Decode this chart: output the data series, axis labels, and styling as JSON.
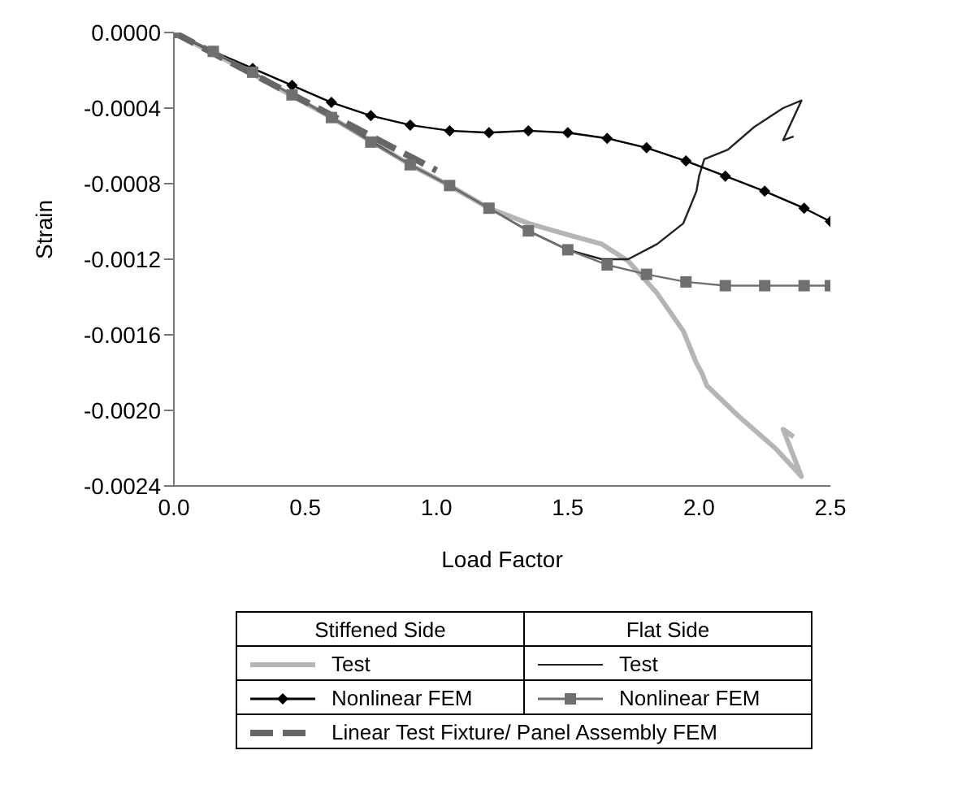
{
  "chart_data": {
    "type": "line",
    "xlabel": "Load Factor",
    "ylabel": "Strain",
    "annotations": [
      "Stiffened Side",
      "Flat Side"
    ],
    "xlim": [
      0,
      2.5
    ],
    "xticks": [
      {
        "value": 0,
        "label": "0.0"
      },
      {
        "value": 0.5,
        "label": "0.5"
      },
      {
        "value": 1,
        "label": "1.0"
      },
      {
        "value": 1.5,
        "label": "1.5"
      },
      {
        "value": 2,
        "label": "2.0"
      },
      {
        "value": 2.5,
        "label": "2.5"
      }
    ],
    "ylim": [
      -0.0024,
      0
    ],
    "yticks": [
      {
        "value": 0,
        "label": "0.0000"
      },
      {
        "value": -0.0004,
        "label": "-0.0004"
      },
      {
        "value": -0.0008,
        "label": "-0.0008"
      },
      {
        "value": -0.0012,
        "label": "-0.0012"
      },
      {
        "value": -0.0016,
        "label": "-0.0016"
      },
      {
        "value": -0.002,
        "label": "-0.0020"
      },
      {
        "value": -0.0024,
        "label": "-0.0024"
      }
    ],
    "grid": false,
    "legend": "bottom",
    "series": [
      {
        "name": "Test",
        "color": "#b5b5b5",
        "marker": "none",
        "line_style": "solid",
        "x": [
          0,
          0.3,
          0.6,
          0.9,
          1.05,
          1.2,
          1.35,
          1.5,
          1.63,
          1.73,
          1.84,
          1.94,
          1.99,
          2.01,
          2.03,
          2.15,
          2.29,
          2.39,
          2.32,
          2.36
        ],
        "values": [
          0,
          -0.00022,
          -0.00045,
          -0.0007,
          -0.00081,
          -0.00093,
          -0.00101,
          -0.00107,
          -0.00112,
          -0.00121,
          -0.00138,
          -0.00158,
          -0.00175,
          -0.0018,
          -0.00187,
          -0.00203,
          -0.0022,
          -0.00235,
          -0.0021,
          -0.00214
        ]
      },
      {
        "name": "Test",
        "color": "#222222",
        "marker": "none",
        "line_style": "solid",
        "x": [
          0,
          0.3,
          0.6,
          0.9,
          1.05,
          1.2,
          1.35,
          1.5,
          1.63,
          1.73,
          1.84,
          1.94,
          1.99,
          2.0,
          2.02,
          2.11,
          2.21,
          2.32,
          2.39,
          2.32,
          2.36
        ],
        "values": [
          0,
          -0.00021,
          -0.00045,
          -0.0007,
          -0.00081,
          -0.00093,
          -0.00105,
          -0.00115,
          -0.0012,
          -0.0012,
          -0.00112,
          -0.00101,
          -0.00084,
          -0.00076,
          -0.00067,
          -0.00062,
          -0.0005,
          -0.0004,
          -0.00036,
          -0.00057,
          -0.00055
        ]
      },
      {
        "name": "Nonlinear FEM",
        "color": "#000000",
        "marker": "diamond",
        "line_style": "solid",
        "x": [
          0,
          0.15,
          0.3,
          0.45,
          0.6,
          0.75,
          0.9,
          1.05,
          1.2,
          1.35,
          1.5,
          1.65,
          1.8,
          1.95,
          2.1,
          2.25,
          2.4,
          2.5
        ],
        "values": [
          0,
          -0.0001,
          -0.00019,
          -0.00028,
          -0.00037,
          -0.00044,
          -0.00049,
          -0.00052,
          -0.00053,
          -0.00052,
          -0.00053,
          -0.00056,
          -0.00061,
          -0.00068,
          -0.00076,
          -0.00084,
          -0.00093,
          -0.001
        ]
      },
      {
        "name": "Nonlinear FEM",
        "color": "#707070",
        "marker": "square",
        "line_style": "solid",
        "x": [
          0,
          0.15,
          0.3,
          0.45,
          0.6,
          0.75,
          0.9,
          1.05,
          1.2,
          1.35,
          1.5,
          1.65,
          1.8,
          1.95,
          2.1,
          2.25,
          2.4,
          2.5
        ],
        "values": [
          0,
          -0.0001,
          -0.00021,
          -0.00033,
          -0.00045,
          -0.00058,
          -0.0007,
          -0.00081,
          -0.00093,
          -0.00105,
          -0.00115,
          -0.00123,
          -0.00128,
          -0.00132,
          -0.00134,
          -0.00134,
          -0.00134,
          -0.00134
        ]
      },
      {
        "name": "Linear Test Fixture/ Panel Assembly FEM",
        "color": "#666666",
        "marker": "none",
        "line_style": "dashed",
        "x": [
          0,
          1.0
        ],
        "values": [
          0,
          -0.00073
        ]
      }
    ]
  }
}
